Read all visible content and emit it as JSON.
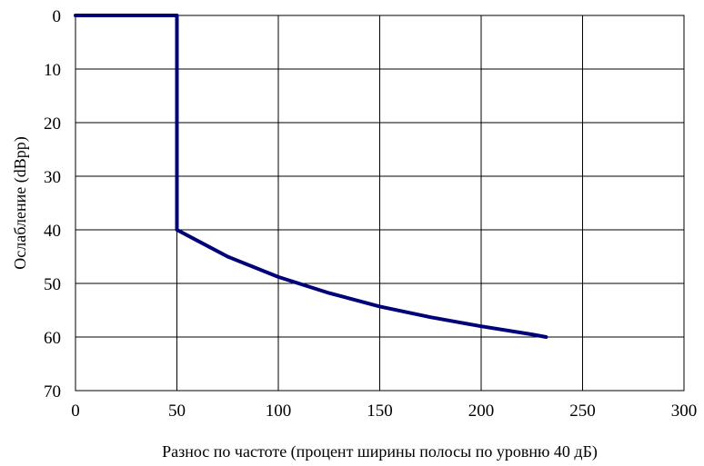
{
  "chart_data": {
    "type": "line",
    "title": "",
    "xlabel": "Разнос по частоте (процент ширины полосы по уровню 40 дБ)",
    "ylabel": "Ослабление (dBpp)",
    "xlim": [
      0,
      300
    ],
    "ylim": [
      0,
      70
    ],
    "y_inverted": true,
    "grid": true,
    "x_ticks": [
      "0",
      "50",
      "100",
      "150",
      "200",
      "250",
      "300"
    ],
    "y_ticks": [
      "0",
      "10",
      "20",
      "30",
      "40",
      "50",
      "60",
      "70"
    ],
    "series": [
      {
        "color": "#00007a",
        "x": [
          0,
          50,
          50,
          60,
          75,
          100,
          125,
          150,
          175,
          200,
          225,
          232
        ],
        "y": [
          0,
          0,
          40,
          42,
          45,
          48.8,
          51.8,
          54.3,
          56.3,
          58,
          59.5,
          60
        ]
      }
    ]
  }
}
